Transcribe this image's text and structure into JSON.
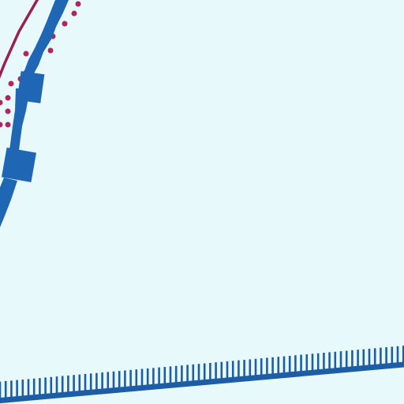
{
  "map": {
    "colors": {
      "background": "#e8f9fc",
      "route_blue": "#1f66b5",
      "route_dark_blue": "#1d5da6",
      "route_maroon": "#9c1f4f",
      "dot_maroon": "#b0275c"
    },
    "features": {
      "maroon_line": "solid-line",
      "maroon_dots": "dotted-line",
      "blue_route": "thick-line",
      "bottom_track": "railway-line"
    }
  }
}
